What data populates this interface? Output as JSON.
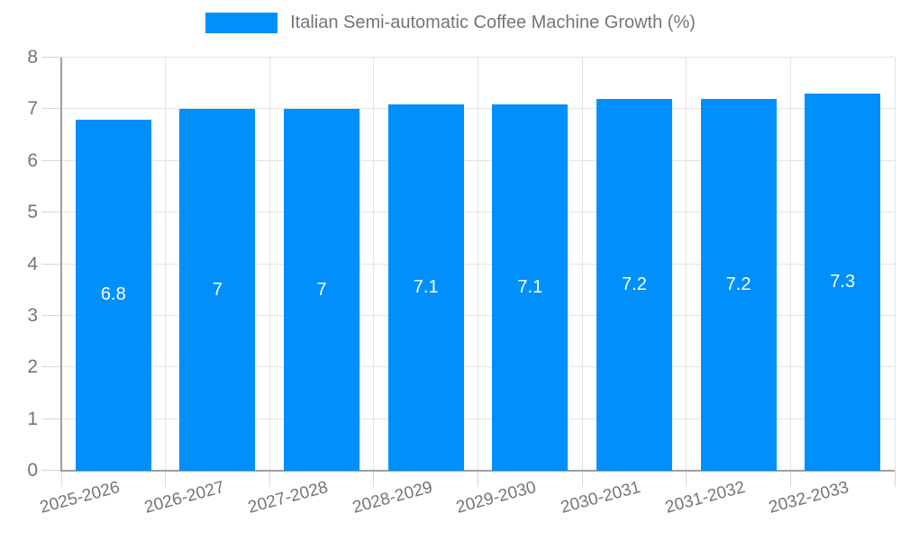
{
  "chart_data": {
    "type": "bar",
    "legend_label": "Italian Semi-automatic Coffee Machine Growth (%)",
    "legend_position": "top",
    "categories": [
      "2025-2026",
      "2026-2027",
      "2027-2028",
      "2028-2029",
      "2029-2030",
      "2030-2031",
      "2031-2032",
      "2032-2033"
    ],
    "values": [
      6.8,
      7,
      7,
      7.1,
      7.1,
      7.2,
      7.2,
      7.3
    ],
    "title": "",
    "xlabel": "",
    "ylabel": "",
    "ylim": [
      0,
      8
    ],
    "ytick_step": 1,
    "grid": true,
    "bar_label_position": "center",
    "x_label_rotation_deg": -15,
    "colors": {
      "bar": "#008FFB",
      "bar_label": "#ffffff",
      "axis_text": "#757575",
      "gridline": "#e4e4e4",
      "tick": "#d6d6d6",
      "axis_line": "#9e9e9e",
      "background": "#ffffff"
    }
  }
}
